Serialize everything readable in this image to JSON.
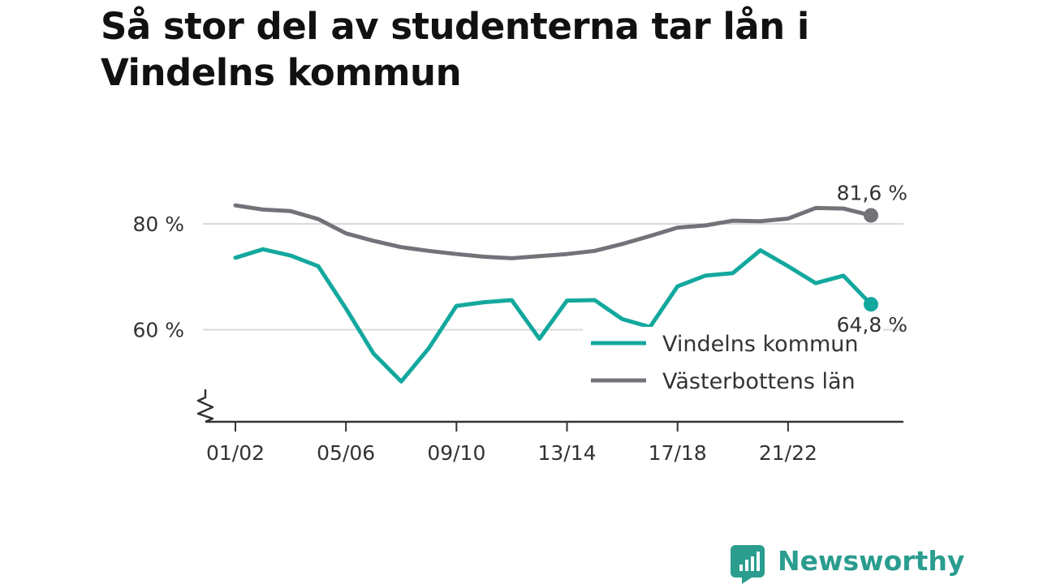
{
  "title": "Så stor del av studenterna tar lån i Vindelns kommun",
  "brand": {
    "name": "Newsworthy",
    "color": "#2a9d8f"
  },
  "chart_data": {
    "type": "line",
    "title": "Så stor del av studenterna tar lån i Vindelns kommun",
    "xlabel": "",
    "ylabel": "",
    "x": [
      "01/02",
      "02/03",
      "03/04",
      "04/05",
      "05/06",
      "06/07",
      "07/08",
      "08/09",
      "09/10",
      "10/11",
      "11/12",
      "12/13",
      "13/14",
      "14/15",
      "15/16",
      "16/17",
      "17/18",
      "18/19",
      "19/20",
      "20/21",
      "21/22",
      "22/23",
      "23/24",
      "24/25"
    ],
    "xticks": [
      "01/02",
      "05/06",
      "09/10",
      "13/14",
      "17/18",
      "21/22"
    ],
    "yticks": [
      60,
      80
    ],
    "ytick_labels": [
      "60 %",
      "80 %"
    ],
    "ylim": [
      43,
      95
    ],
    "grid": true,
    "axis_break": true,
    "legend_position": "bottom-right",
    "series": [
      {
        "name": "Vindelns kommun",
        "color": "#13a89e",
        "values": [
          73.6,
          75.2,
          74.0,
          72.0,
          64.0,
          55.5,
          50.2,
          56.5,
          64.5,
          65.2,
          65.6,
          58.3,
          65.5,
          65.6,
          62.0,
          60.5,
          68.2,
          70.2,
          70.7,
          75.0,
          72.0,
          68.8,
          70.2,
          64.8
        ],
        "end_label": "64,8 %"
      },
      {
        "name": "Västerbottens län",
        "color": "#737278",
        "values": [
          83.5,
          82.7,
          82.4,
          80.9,
          78.2,
          76.8,
          75.6,
          74.9,
          74.3,
          73.8,
          73.5,
          73.9,
          74.3,
          74.9,
          76.2,
          77.7,
          79.3,
          79.7,
          80.6,
          80.5,
          81.0,
          83.0,
          82.9,
          81.6
        ],
        "end_label": "81,6 %"
      }
    ]
  }
}
